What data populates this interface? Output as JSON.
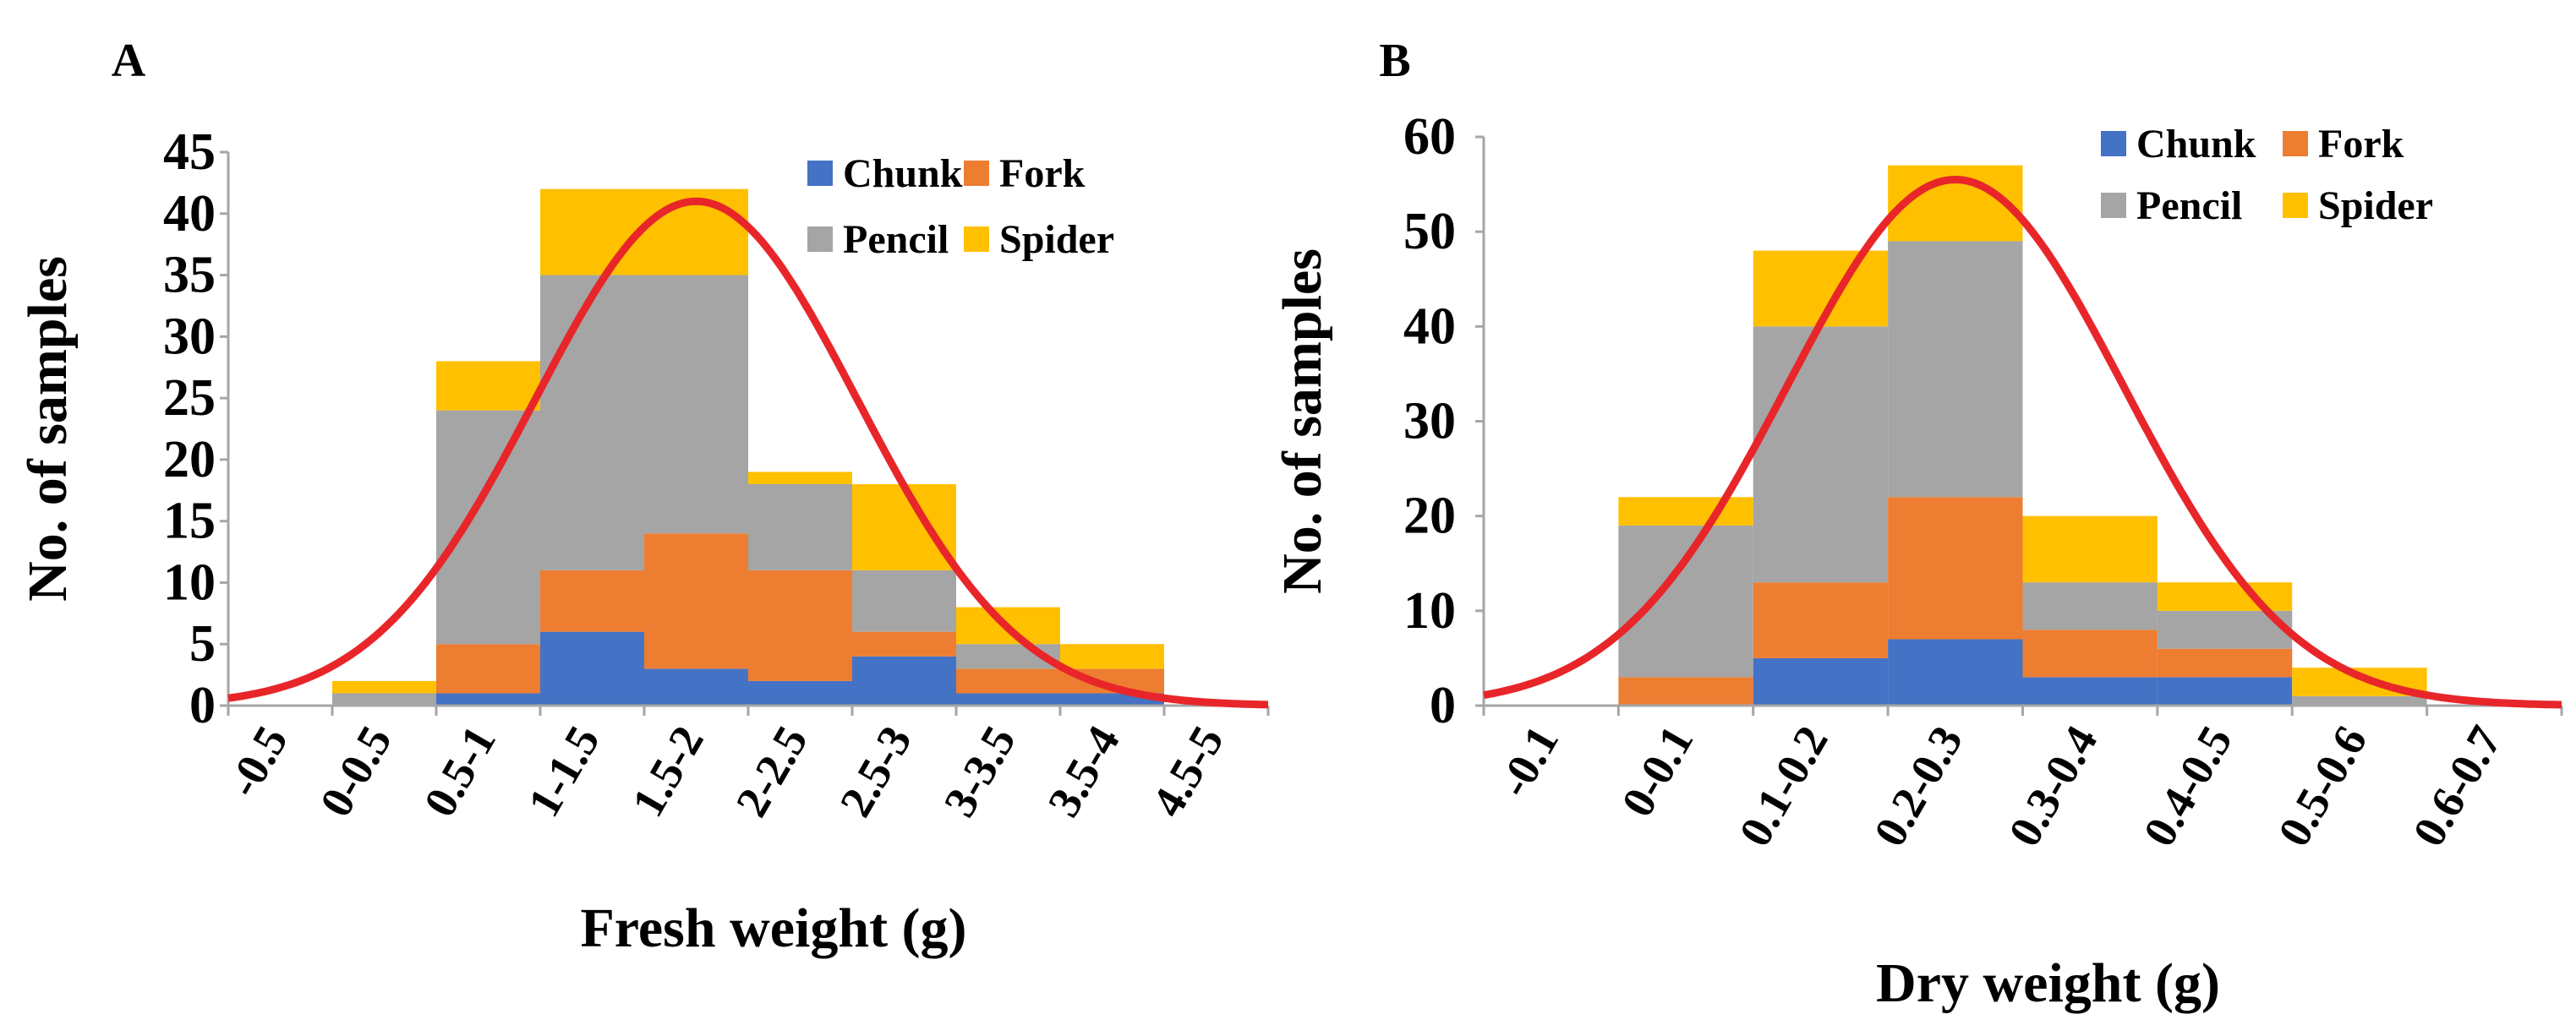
{
  "colors": {
    "Chunk": "#4472C4",
    "Fork": "#ED7D31",
    "Pencil": "#A5A5A5",
    "Spider": "#FFC000",
    "curve": "#E8262A",
    "axis": "#A6A6A6"
  },
  "chart_data": [
    {
      "type": "bar",
      "stacked": true,
      "panel_label": "A",
      "title": "",
      "xlabel": "Fresh weight (g)",
      "ylabel": "No. of samples",
      "ylim": [
        0,
        45
      ],
      "yticks": [
        0,
        5,
        10,
        15,
        20,
        25,
        30,
        35,
        40,
        45
      ],
      "categories": [
        "-0.5",
        "0-0.5",
        "0.5-1",
        "1-1.5",
        "1.5-2",
        "2-2.5",
        "2.5-3",
        "3-3.5",
        "3.5-4",
        "4.5-5"
      ],
      "series": [
        {
          "name": "Chunk",
          "values": [
            0,
            0,
            1,
            6,
            3,
            2,
            4,
            1,
            1,
            0
          ]
        },
        {
          "name": "Fork",
          "values": [
            0,
            0,
            4,
            5,
            11,
            9,
            2,
            2,
            2,
            0
          ]
        },
        {
          "name": "Pencil",
          "values": [
            0,
            1,
            19,
            24,
            21,
            7,
            5,
            2,
            0,
            0
          ]
        },
        {
          "name": "Spider",
          "values": [
            0,
            1,
            4,
            7,
            7,
            1,
            7,
            3,
            2,
            0
          ]
        }
      ],
      "fit_curve": {
        "type": "normal",
        "peak": 41,
        "peak_at_category": 4.0,
        "sd_categories": 1.55
      },
      "legend": "top-right"
    },
    {
      "type": "bar",
      "stacked": true,
      "panel_label": "B",
      "title": "",
      "xlabel": "Dry weight (g)",
      "ylabel": "No. of samples",
      "ylim": [
        0,
        60
      ],
      "yticks": [
        0,
        10,
        20,
        30,
        40,
        50,
        60
      ],
      "categories": [
        "-0.1",
        "0-0.1",
        "0.1-0.2",
        "0.2-0.3",
        "0.3-0.4",
        "0.4-0.5",
        "0.5-0.6",
        "0.6-0.7"
      ],
      "series": [
        {
          "name": "Chunk",
          "values": [
            0,
            0,
            5,
            7,
            3,
            3,
            0,
            0
          ]
        },
        {
          "name": "Fork",
          "values": [
            0,
            3,
            8,
            15,
            5,
            3,
            0,
            0
          ]
        },
        {
          "name": "Pencil",
          "values": [
            0,
            16,
            27,
            27,
            5,
            4,
            1,
            0
          ]
        },
        {
          "name": "Spider",
          "values": [
            0,
            3,
            8,
            8,
            7,
            3,
            3,
            0
          ]
        }
      ],
      "fit_curve": {
        "type": "normal",
        "peak": 55.5,
        "peak_at_category": 3.0,
        "sd_categories": 1.25
      },
      "legend": "top-right"
    }
  ]
}
